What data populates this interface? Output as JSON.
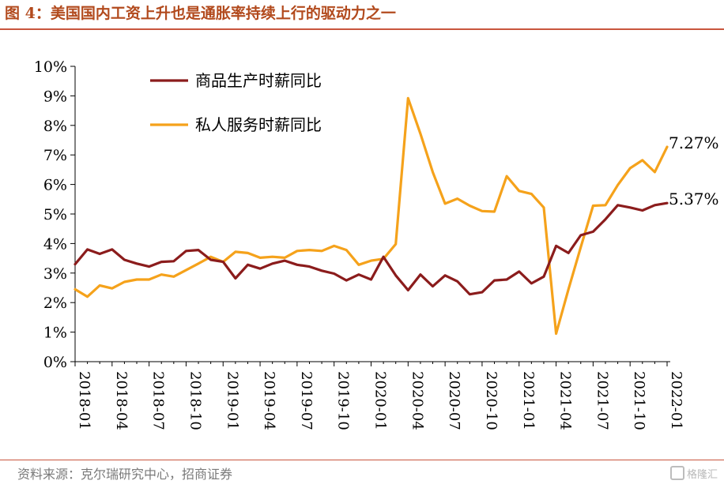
{
  "header": {
    "title": "图 4：美国国内工资上升也是通胀率持续上行的驱动力之一"
  },
  "footer": {
    "source": "资料来源：克尔瑞研究中心，招商证券",
    "watermark": "格隆汇"
  },
  "colors": {
    "title": "#b24a1d",
    "rule": "#c8553d",
    "goods": "#8b1c1c",
    "services": "#f5a21b"
  },
  "chart_data": {
    "type": "line",
    "title": "",
    "xlabel": "",
    "ylabel": "",
    "ylim": [
      0,
      10
    ],
    "yticks": [
      "0%",
      "1%",
      "2%",
      "3%",
      "4%",
      "5%",
      "6%",
      "7%",
      "8%",
      "9%",
      "10%"
    ],
    "xtick_labels": [
      "2018-01",
      "2018-04",
      "2018-07",
      "2018-10",
      "2019-01",
      "2019-04",
      "2019-07",
      "2019-10",
      "2020-01",
      "2020-04",
      "2020-07",
      "2020-10",
      "2021-01",
      "2021-04",
      "2021-07",
      "2021-10",
      "2022-01"
    ],
    "grid": false,
    "legend_position": "top-left",
    "x": [
      "2018-01",
      "2018-02",
      "2018-03",
      "2018-04",
      "2018-05",
      "2018-06",
      "2018-07",
      "2018-08",
      "2018-09",
      "2018-10",
      "2018-11",
      "2018-12",
      "2019-01",
      "2019-02",
      "2019-03",
      "2019-04",
      "2019-05",
      "2019-06",
      "2019-07",
      "2019-08",
      "2019-09",
      "2019-10",
      "2019-11",
      "2019-12",
      "2020-01",
      "2020-02",
      "2020-03",
      "2020-04",
      "2020-05",
      "2020-06",
      "2020-07",
      "2020-08",
      "2020-09",
      "2020-10",
      "2020-11",
      "2020-12",
      "2021-01",
      "2021-02",
      "2021-03",
      "2021-04",
      "2021-05",
      "2021-06",
      "2021-07",
      "2021-08",
      "2021-09",
      "2021-10",
      "2021-11",
      "2021-12",
      "2022-01"
    ],
    "series": [
      {
        "name": "商品生产时薪同比",
        "color": "#8b1c1c",
        "end_label": "5.37%",
        "values": [
          3.3,
          3.8,
          3.65,
          3.8,
          3.45,
          3.32,
          3.22,
          3.38,
          3.4,
          3.75,
          3.78,
          3.45,
          3.38,
          2.82,
          3.28,
          3.15,
          3.32,
          3.42,
          3.28,
          3.22,
          3.08,
          2.98,
          2.75,
          2.95,
          2.78,
          3.55,
          2.92,
          2.42,
          2.95,
          2.55,
          2.92,
          2.72,
          2.28,
          2.35,
          2.75,
          2.78,
          3.05,
          2.65,
          2.88,
          3.92,
          3.68,
          4.28,
          4.4,
          4.82,
          5.3,
          5.22,
          5.12,
          5.3,
          5.37
        ]
      },
      {
        "name": "私人服务时薪同比",
        "color": "#f5a21b",
        "end_label": "7.27%",
        "values": [
          2.45,
          2.2,
          2.58,
          2.48,
          2.7,
          2.78,
          2.78,
          2.95,
          2.88,
          3.1,
          3.32,
          3.55,
          3.38,
          3.72,
          3.68,
          3.52,
          3.55,
          3.52,
          3.75,
          3.78,
          3.75,
          3.92,
          3.78,
          3.28,
          3.42,
          3.48,
          3.98,
          8.92,
          7.72,
          6.42,
          5.35,
          5.52,
          5.28,
          5.1,
          5.08,
          6.28,
          5.78,
          5.68,
          5.22,
          0.95,
          2.45,
          3.88,
          5.28,
          5.3,
          5.98,
          6.55,
          6.82,
          6.42,
          7.27
        ]
      }
    ]
  }
}
